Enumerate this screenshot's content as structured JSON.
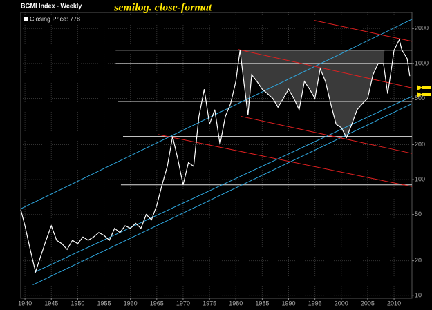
{
  "chart_data": {
    "type": "line",
    "title": "BGMI Index - Weekly",
    "subtitle": "semilog. close-format",
    "log_scale": true,
    "grid": true,
    "x": [
      1939.2,
      1940,
      1941,
      1942,
      1943,
      1944,
      1945,
      1946,
      1947,
      1948,
      1949,
      1950,
      1951,
      1952,
      1953,
      1954,
      1955,
      1956,
      1957,
      1958,
      1959,
      1960,
      1961,
      1962,
      1963,
      1964,
      1965,
      1966,
      1967,
      1968,
      1969,
      1970,
      1971,
      1972,
      1973,
      1974,
      1975,
      1976,
      1977,
      1978,
      1979,
      1980,
      1980.8,
      1981.5,
      1982.3,
      1983,
      1984,
      1985,
      1986,
      1987,
      1988,
      1989,
      1990,
      1991,
      1992,
      1993,
      1994,
      1995,
      1996,
      1997,
      1998,
      1999,
      2000,
      2001,
      2002,
      2003,
      2004,
      2005,
      2006,
      2007,
      2008,
      2008.8,
      2009.5,
      2010,
      2011,
      2011.5,
      2012,
      2012.5,
      2013
    ],
    "series": [
      {
        "name": "Closing Price: 778",
        "color": "#ffffff",
        "values": [
          55,
          40,
          25,
          16,
          22,
          30,
          40,
          30,
          28,
          25,
          30,
          28,
          32,
          30,
          32,
          35,
          33,
          30,
          38,
          35,
          40,
          38,
          42,
          38,
          50,
          45,
          60,
          90,
          130,
          235,
          150,
          90,
          140,
          130,
          350,
          600,
          300,
          400,
          200,
          350,
          450,
          700,
          1300,
          700,
          360,
          800,
          700,
          600,
          550,
          500,
          420,
          500,
          600,
          500,
          400,
          700,
          600,
          500,
          900,
          700,
          450,
          300,
          280,
          230,
          300,
          400,
          450,
          500,
          800,
          1000,
          1000,
          550,
          900,
          1300,
          1600,
          1300,
          1200,
          1100,
          778
        ]
      }
    ],
    "xlim": [
      1939.2,
      2013.4
    ],
    "xticks": [
      1940,
      1945,
      1950,
      1955,
      1960,
      1965,
      1970,
      1975,
      1980,
      1985,
      1990,
      1995,
      2000,
      2005,
      2010
    ],
    "ylim": [
      9.5,
      2750
    ],
    "yticks": [
      10,
      20,
      50,
      100,
      200,
      500,
      1000,
      2000
    ],
    "hlines": [
      {
        "value": 1300,
        "from": 1957.2
      },
      {
        "value": 1000,
        "from": 1957.2
      },
      {
        "value": 470,
        "from": 1957.6
      },
      {
        "value": 235,
        "from": 1958.6
      },
      {
        "value": 90,
        "from": 1958.2
      }
    ],
    "shade_x": [
      1980.8,
      2008.2
    ],
    "trendlines": [
      {
        "color": "#2fa8e0",
        "x": [
          1939.2,
          2013.4
        ],
        "values": [
          56,
          2400
        ]
      },
      {
        "color": "#2fa8e0",
        "x": [
          1941.8,
          2013.4
        ],
        "values": [
          15.9,
          520
        ]
      },
      {
        "color": "#2fa8e0",
        "x": [
          1941.5,
          2013.4
        ],
        "values": [
          12.4,
          450
        ]
      },
      {
        "color": "#e02020",
        "x": [
          1994.8,
          2013.4
        ],
        "values": [
          2350,
          1550
        ]
      },
      {
        "color": "#e02020",
        "x": [
          1980.4,
          2013.4
        ],
        "values": [
          1320,
          616
        ]
      },
      {
        "color": "#e02020",
        "x": [
          1981,
          2013.4
        ],
        "values": [
          350,
          168
        ]
      },
      {
        "color": "#e02020",
        "x": [
          1965.3,
          2013.4
        ],
        "values": [
          244,
          87
        ]
      }
    ]
  }
}
